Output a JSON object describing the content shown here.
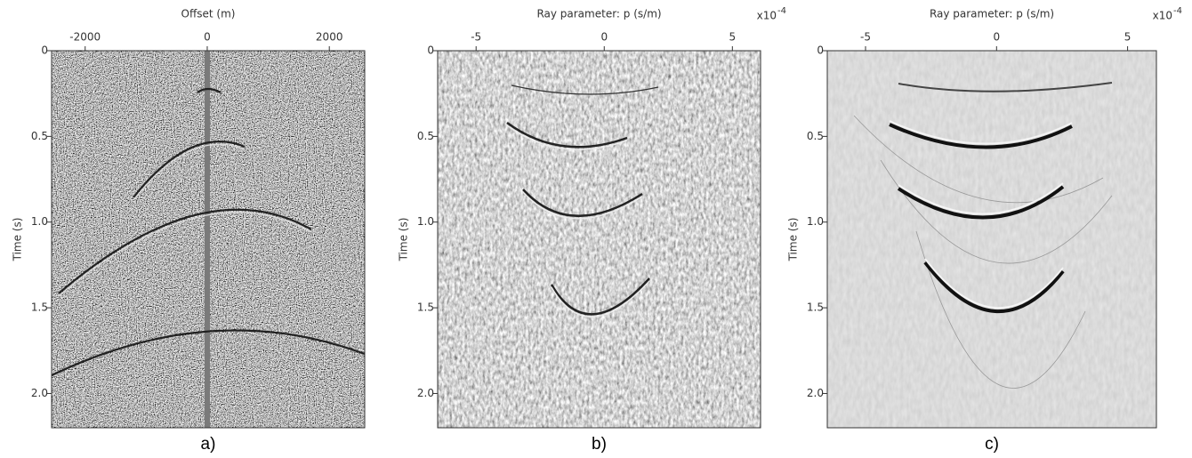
{
  "chart_data": [
    {
      "type": "image",
      "title": "Offset (m)",
      "y_label": "Time (s)",
      "caption": "a)",
      "xlim": [
        -2550,
        2580
      ],
      "xticks": [
        -2000,
        0,
        2000
      ],
      "ylim": [
        0,
        2.2
      ],
      "yticks": [
        0,
        0.5,
        {
          "value": 1,
          "label": "1.0"
        },
        1.5,
        {
          "value": 2,
          "label": "2.0"
        }
      ]
    },
    {
      "type": "image",
      "title": "Ray parameter: p (s/m)",
      "y_label": "Time (s)",
      "caption": "b)",
      "x_multiplier": "x10",
      "x_multiplier_exponent": "-4",
      "xlim": [
        -6.5,
        6.1
      ],
      "xticks": [
        -5,
        0,
        5
      ],
      "ylim": [
        0,
        2.2
      ],
      "yticks": [
        0,
        0.5,
        {
          "value": 1,
          "label": "1.0"
        },
        1.5,
        {
          "value": 2,
          "label": "2.0"
        }
      ]
    },
    {
      "type": "image",
      "title": "Ray parameter: p (s/m)",
      "y_label": "Time (s)",
      "caption": "c)",
      "x_multiplier": "x10",
      "x_multiplier_exponent": "-4",
      "xlim": [
        -6.46,
        6.1
      ],
      "xticks": [
        -5,
        0,
        5
      ],
      "ylim": [
        0,
        2.2
      ],
      "yticks": [
        0,
        0.5,
        {
          "value": 1,
          "label": "1.0"
        },
        1.5,
        {
          "value": 2,
          "label": "2.0"
        }
      ]
    }
  ]
}
